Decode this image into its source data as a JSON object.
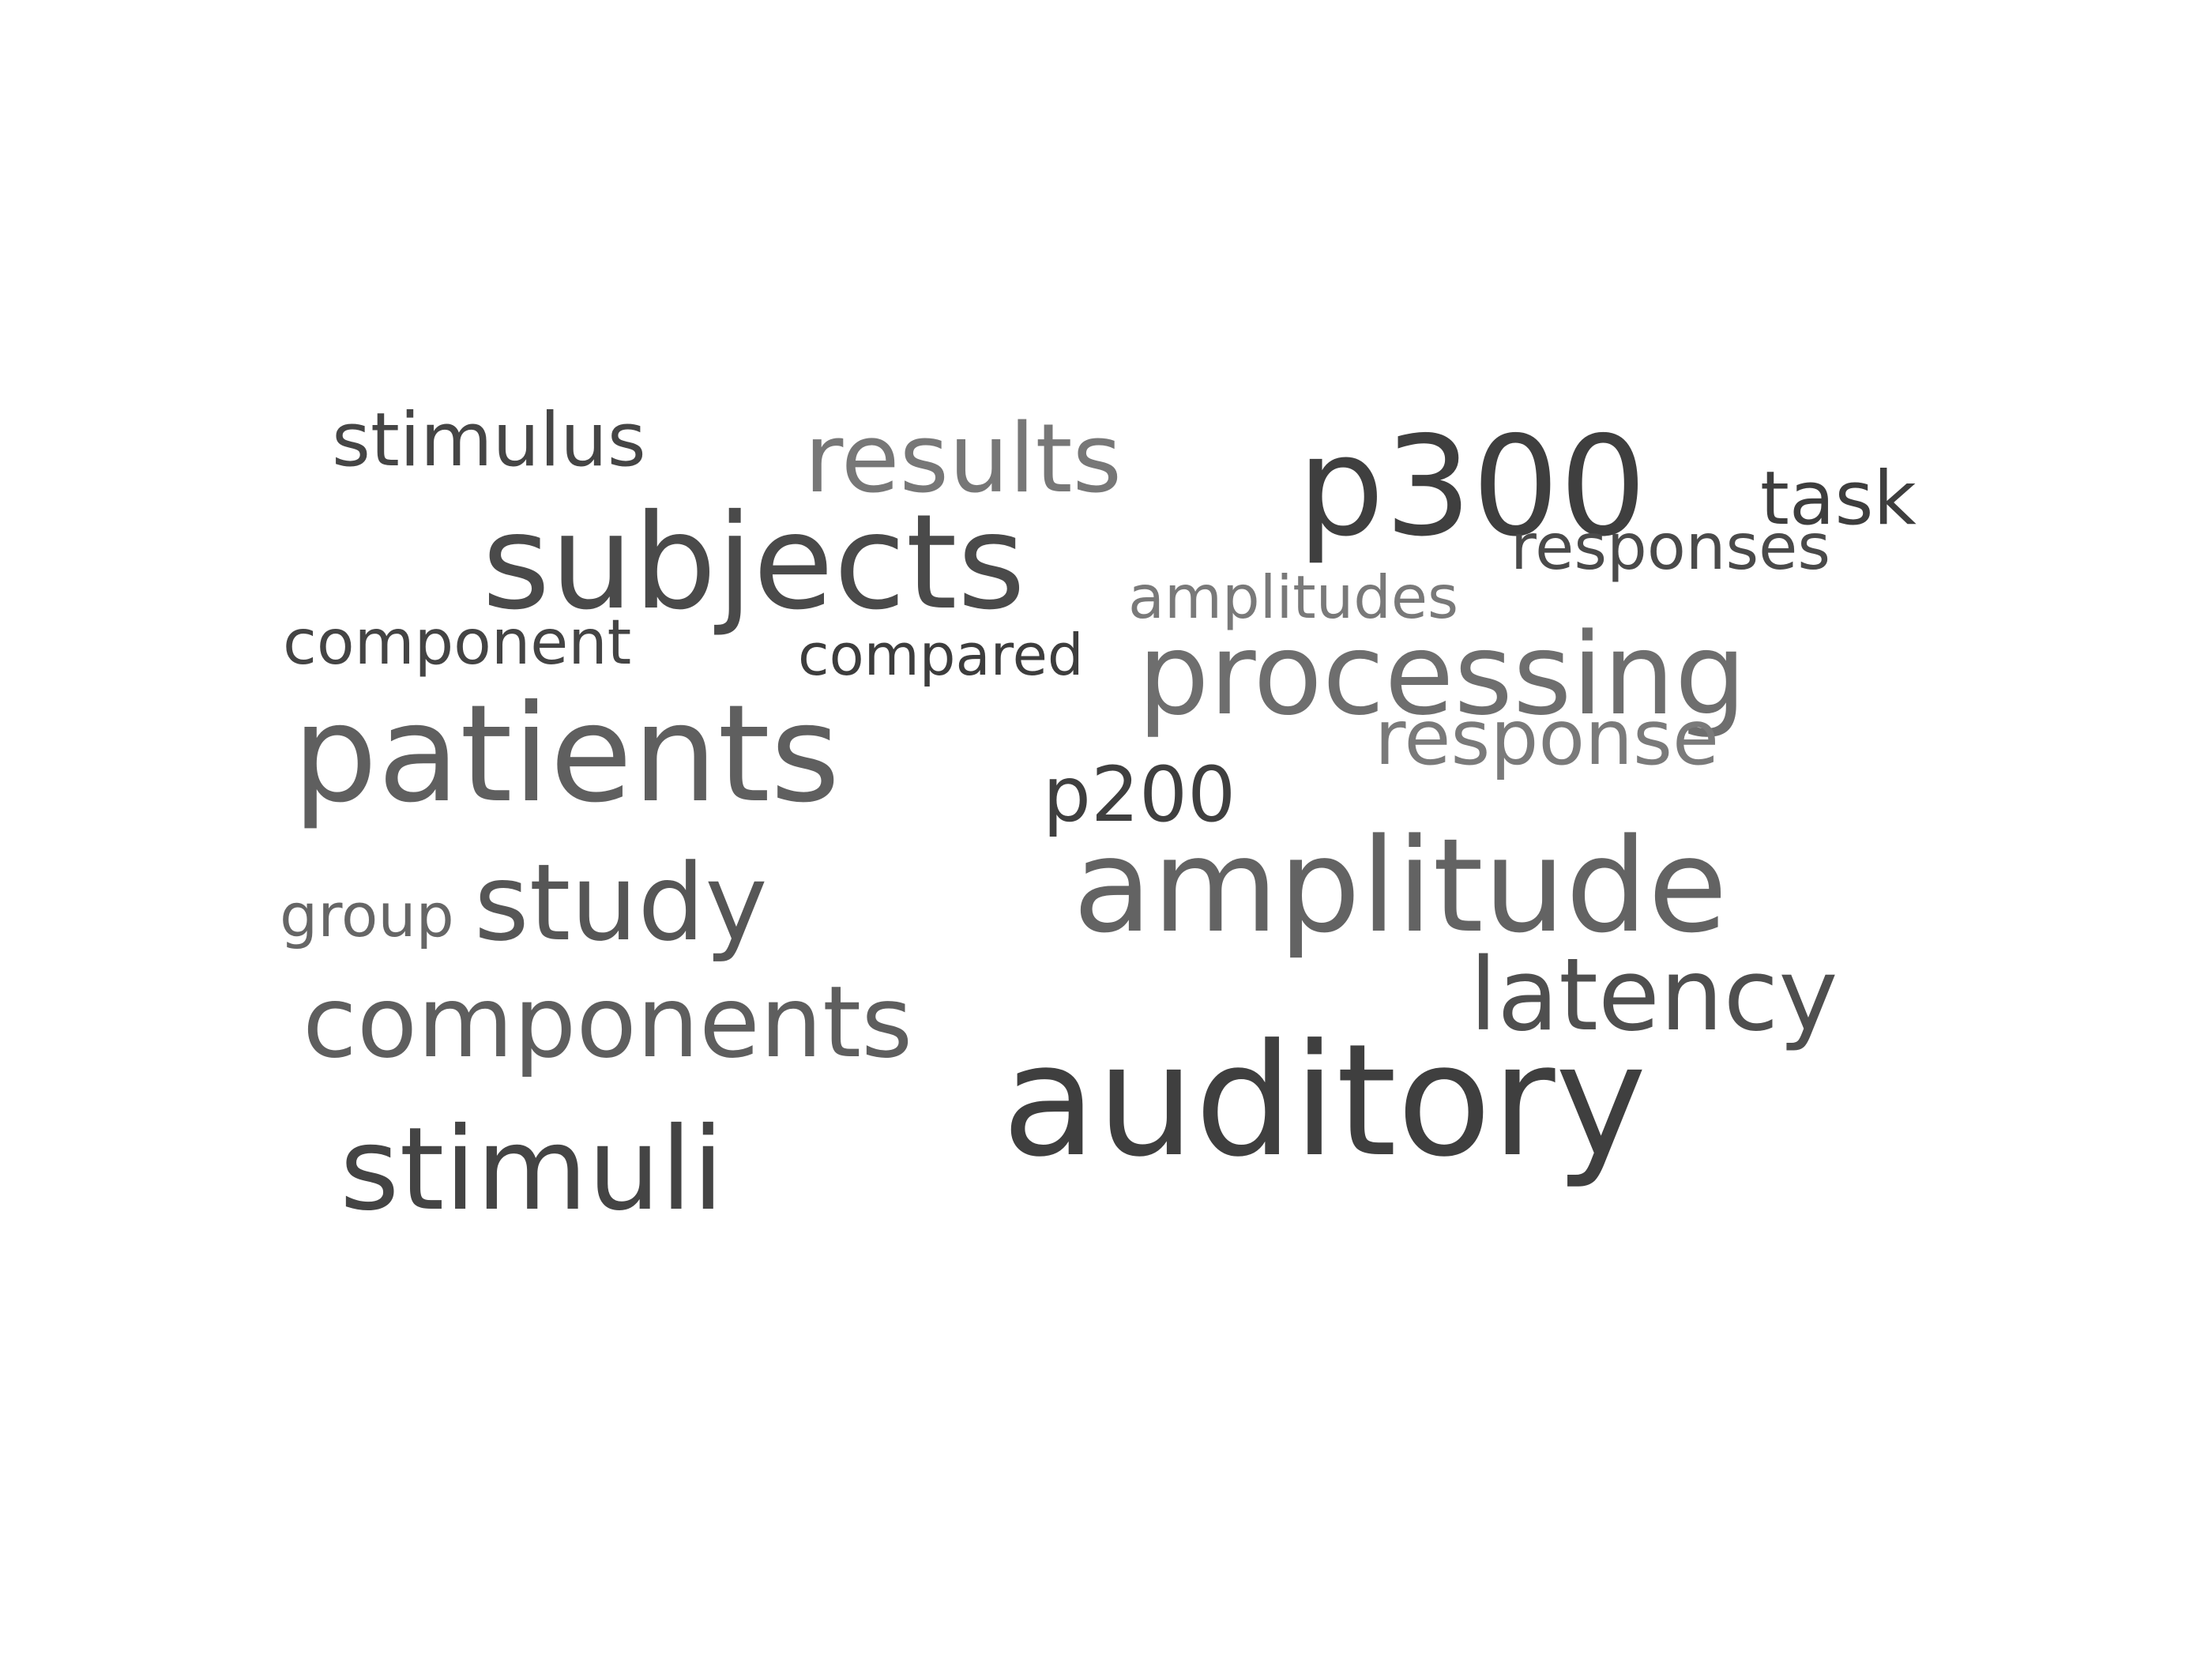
{
  "words": {
    "auditory": {
      "text": "auditory",
      "color": "#3f3f3f"
    },
    "patients": {
      "text": "patients",
      "color": "#5f5f5f"
    },
    "subjects": {
      "text": "subjects",
      "color": "#4a4a4a"
    },
    "amplitude": {
      "text": "amplitude",
      "color": "#636363"
    },
    "p300": {
      "text": "p300",
      "color": "#3f3f3f"
    },
    "processing": {
      "text": "processing",
      "color": "#6e6e6e"
    },
    "stimuli": {
      "text": "stimuli",
      "color": "#444444"
    },
    "study": {
      "text": "study",
      "color": "#565656"
    },
    "components": {
      "text": "components",
      "color": "#5e5e5e"
    },
    "results": {
      "text": "results",
      "color": "#777777"
    },
    "latency": {
      "text": "latency",
      "color": "#4f4f4f"
    },
    "response": {
      "text": "response",
      "color": "#7a7a7a"
    },
    "stimulus": {
      "text": "stimulus",
      "color": "#454545"
    },
    "task": {
      "text": "task",
      "color": "#3e3e3e"
    },
    "p200": {
      "text": "p200",
      "color": "#3f3f3f"
    },
    "responses": {
      "text": "responses",
      "color": "#4a4a4a"
    },
    "component": {
      "text": "component",
      "color": "#444444"
    },
    "amplitudes": {
      "text": "amplitudes",
      "color": "#797979"
    },
    "compared": {
      "text": "compared",
      "color": "#3d3d3d"
    },
    "group": {
      "text": "group",
      "color": "#666666"
    }
  }
}
